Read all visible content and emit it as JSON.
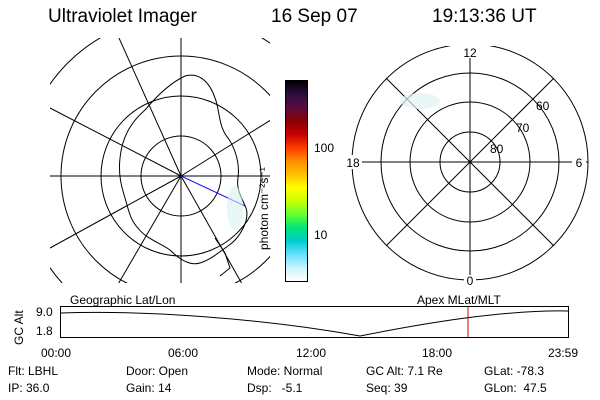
{
  "header": {
    "instrument": "Ultraviolet Imager",
    "date": "16 Sep 07",
    "time": "19:13:36 UT"
  },
  "colorbar": {
    "unit_label": "photon cm⁻²s⁻¹",
    "ticks": [
      "100",
      "10"
    ],
    "colors_top_to_bottom": [
      "#000000",
      "#2b0f3f",
      "#5a0b40",
      "#8a0000",
      "#c40000",
      "#ff3a00",
      "#ff8c00",
      "#ffc000",
      "#ffff00",
      "#c8ff00",
      "#66ff33",
      "#00e676",
      "#00cccc",
      "#66e0ff",
      "#c8f5ff",
      "#ffffff"
    ]
  },
  "geo_map": {
    "label": "Geographic Lat/Lon"
  },
  "polar_plot": {
    "label": "Apex MLat/MLT",
    "mlt_labels": {
      "top": "12",
      "left": "18",
      "right": "6",
      "bottom": "0"
    },
    "lat_labels": [
      "60",
      "70",
      "80"
    ]
  },
  "altitude_plot": {
    "ylabel": "GC Alt",
    "yticks": [
      "9.0",
      "1.8"
    ],
    "xticks": [
      "00:00",
      "06:00",
      "12:00",
      "18:00",
      "23:59"
    ],
    "marker_time": "19:13",
    "marker_color": "#d40000"
  },
  "status": {
    "col1": [
      "Flt: LBHL",
      "IP: 36.0"
    ],
    "col2": [
      "Door: Open",
      "Gain: 14"
    ],
    "col3_a": [
      "Mode: Normal",
      "Dsp:   -5.1"
    ],
    "col4": [
      "GC Alt: 7.1 Re",
      "Seq: 39"
    ],
    "col5": [
      "GLat: -78.3",
      "GLon:  47.5"
    ]
  }
}
